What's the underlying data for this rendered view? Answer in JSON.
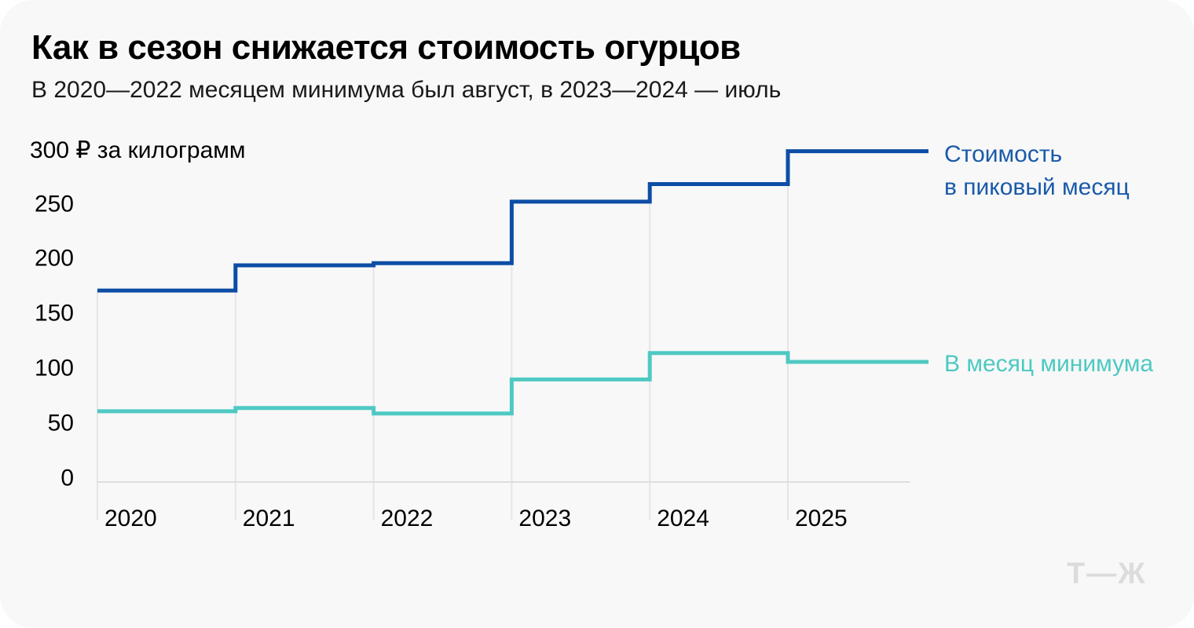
{
  "header": {
    "title": "Как в сезон снижается стоимость огурцов",
    "subtitle": "В 2020—2022 месяцем минимума был август, в 2023—2024 — июль"
  },
  "axis": {
    "unit_label": "300 ₽ за килограмм"
  },
  "legend": {
    "peak_line1": "Стоимость",
    "peak_line2": "в пиковый месяц",
    "min_label": "В месяц минимума"
  },
  "watermark": "Т—Ж",
  "colors": {
    "peak_line": "#0d4da6",
    "min_line": "#4fc9c2",
    "gridline": "#e5e5e5",
    "axis_line": "#dedede",
    "card_background": "#f8f8f9",
    "legend_peak_text": "#1a5aa9",
    "legend_min_text": "#4dc9c1",
    "watermark_gray": "#dcdcdc"
  },
  "chart_data": {
    "type": "line",
    "subtype": "step",
    "title": "Как в сезон снижается стоимость огурцов",
    "subtitle": "В 2020—2022 месяцем минимума был август, в 2023—2024 — июль",
    "xlabel": "",
    "ylabel": "₽ за килограмм",
    "categories": [
      2020,
      2021,
      2022,
      2023,
      2024,
      2025
    ],
    "series": [
      {
        "name": "Стоимость в пиковый месяц",
        "color": "#0d4da6",
        "values": [
          173,
          196,
          198,
          254,
          270,
          300
        ]
      },
      {
        "name": "В месяц минимума",
        "color": "#4fc9c2",
        "values": [
          63,
          66,
          61,
          92,
          116,
          108
        ]
      }
    ],
    "ylim": [
      0,
      300
    ],
    "yticks": [
      0,
      50,
      100,
      150,
      200,
      250
    ],
    "top_tick_label": "300 ₽ за килограмм",
    "grid": "vertical-year-gridlines-only",
    "legend_position": "right-of-line-ends"
  }
}
